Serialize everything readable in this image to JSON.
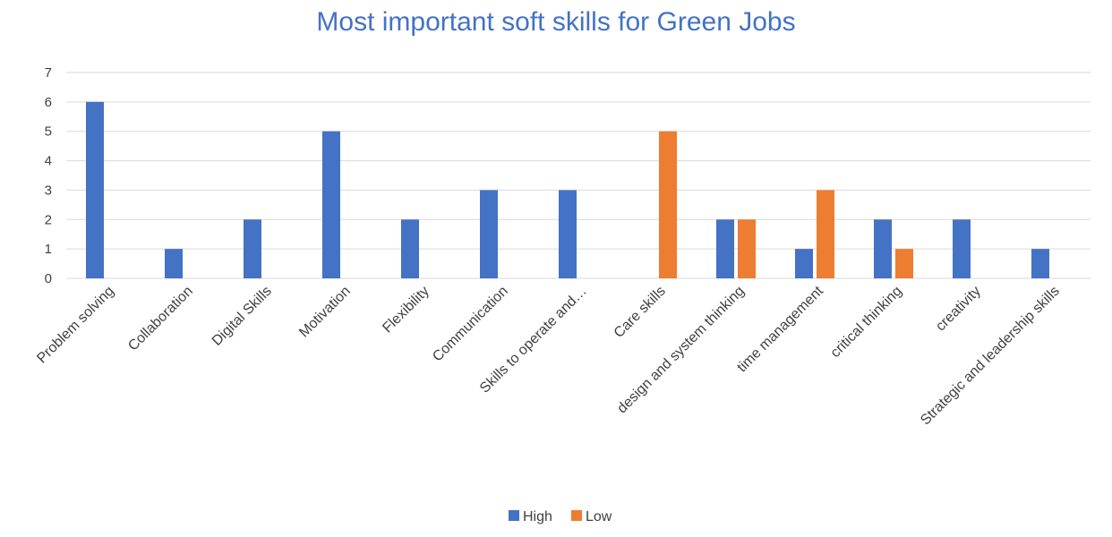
{
  "chart_data": {
    "type": "bar",
    "title": "Most important soft skills for Green Jobs",
    "xlabel": "",
    "ylabel": "",
    "ylim": [
      0,
      7
    ],
    "yticks": [
      0,
      1,
      2,
      3,
      4,
      5,
      6,
      7
    ],
    "grid": true,
    "legend_position": "bottom",
    "categories": [
      "Problem solving",
      "Collaboration",
      "Digital Skills",
      "Motivation",
      "Flexibility",
      "Communication",
      "Skills to operate and…",
      "Care skills",
      "design and system thinking",
      "time management",
      "critical thinking",
      "creativity",
      "Strategic and leadership skills"
    ],
    "series": [
      {
        "name": "High",
        "color": "#4472c4",
        "values": [
          6,
          1,
          2,
          5,
          2,
          3,
          3,
          0,
          2,
          1,
          2,
          2,
          1
        ]
      },
      {
        "name": "Low",
        "color": "#ed7d31",
        "values": [
          0,
          0,
          0,
          0,
          0,
          0,
          0,
          5,
          2,
          3,
          1,
          0,
          0
        ]
      }
    ]
  }
}
